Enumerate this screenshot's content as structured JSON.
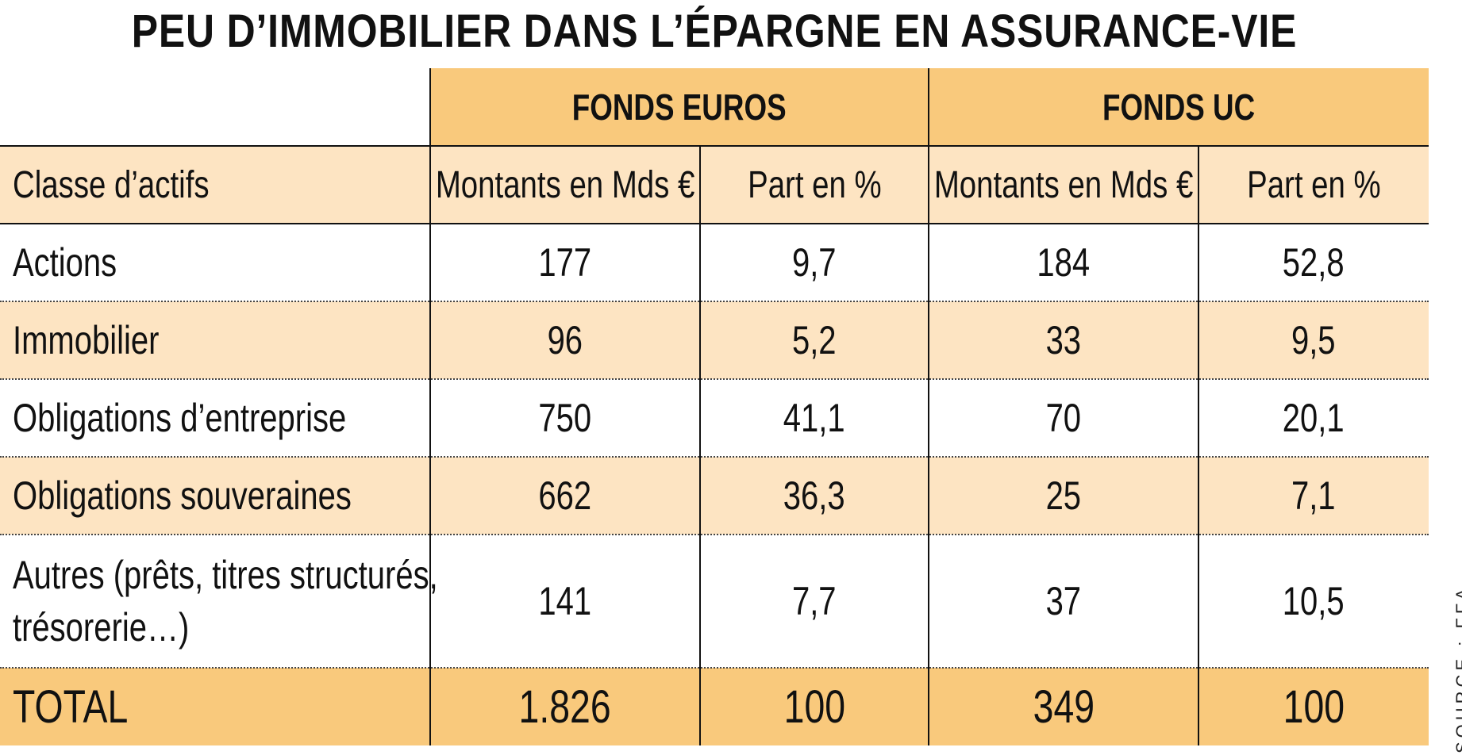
{
  "title": "PEU D’IMMOBILIER DANS L’ÉPARGNE EN ASSURANCE-VIE",
  "source": "SOURCE : FFA",
  "colors": {
    "header_dark": "#f9c97c",
    "header_light": "#fde4c2",
    "row_shade": "#fde4c2",
    "total_row": "#f9c97c"
  },
  "chart_data": {
    "type": "table",
    "title": "PEU D’IMMOBILIER DANS L’ÉPARGNE EN ASSURANCE-VIE",
    "column_groups": [
      "FONDS EUROS",
      "FONDS UC"
    ],
    "columns": [
      "Classe d’actifs",
      "Montants en Mds €",
      "Part en %",
      "Montants en Mds €",
      "Part en %"
    ],
    "rows": [
      {
        "label": "Actions",
        "values": [
          "177",
          "9,7",
          "184",
          "52,8"
        ]
      },
      {
        "label": "Immobilier",
        "values": [
          "96",
          "5,2",
          "33",
          "9,5"
        ]
      },
      {
        "label": "Obligations d’entreprise",
        "values": [
          "750",
          "41,1",
          "70",
          "20,1"
        ]
      },
      {
        "label": "Obligations souveraines",
        "values": [
          "662",
          "36,3",
          "25",
          "7,1"
        ]
      },
      {
        "label_line1": "Autres (prêts, titres structurés,",
        "label_line2": "trésorerie…)",
        "values": [
          "141",
          "7,7",
          "37",
          "10,5"
        ]
      }
    ],
    "total": {
      "label": "TOTAL",
      "values": [
        "1.826",
        "100",
        "349",
        "100"
      ]
    }
  }
}
